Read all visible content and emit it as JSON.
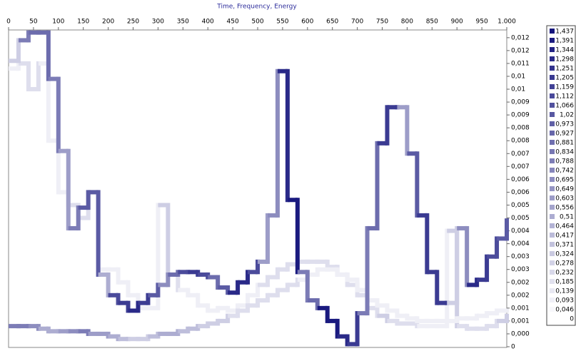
{
  "chart_data": {
    "type": "step-heat",
    "title": "Time, Frequency, Energy",
    "xlim": [
      0,
      1000
    ],
    "xticks": [
      0,
      50,
      100,
      150,
      200,
      250,
      300,
      350,
      400,
      450,
      500,
      550,
      600,
      650,
      700,
      750,
      800,
      850,
      900,
      950,
      {
        "value": 1000,
        "label": "1.000"
      }
    ],
    "ylim": [
      0,
      0.0123
    ],
    "yticks": [
      {
        "value": 0.012,
        "label": "0,012"
      },
      {
        "value": 0.0115,
        "label": "0,012"
      },
      {
        "value": 0.011,
        "label": "0,011"
      },
      {
        "value": 0.0105,
        "label": "0,01"
      },
      {
        "value": 0.01,
        "label": "0,01"
      },
      {
        "value": 0.0095,
        "label": "0,009"
      },
      {
        "value": 0.009,
        "label": "0,009"
      },
      {
        "value": 0.0085,
        "label": "0,008"
      },
      {
        "value": 0.008,
        "label": "0,008"
      },
      {
        "value": 0.0075,
        "label": "0,007"
      },
      {
        "value": 0.007,
        "label": "0,007"
      },
      {
        "value": 0.0065,
        "label": "0,006"
      },
      {
        "value": 0.006,
        "label": "0,006"
      },
      {
        "value": 0.0055,
        "label": "0,005"
      },
      {
        "value": 0.005,
        "label": "0,005"
      },
      {
        "value": 0.0045,
        "label": "0,004"
      },
      {
        "value": 0.004,
        "label": "0,004"
      },
      {
        "value": 0.0035,
        "label": "0,003"
      },
      {
        "value": 0.003,
        "label": "0,003"
      },
      {
        "value": 0.0025,
        "label": "0,002"
      },
      {
        "value": 0.002,
        "label": "0,002"
      },
      {
        "value": 0.0015,
        "label": "0,001"
      },
      {
        "value": 0.001,
        "label": "0,001"
      },
      {
        "value": 0.0005,
        "label": "0,000"
      },
      0
    ],
    "x": [
      0,
      20,
      40,
      60,
      80,
      100,
      120,
      140,
      160,
      180,
      200,
      220,
      240,
      260,
      280,
      300,
      320,
      340,
      360,
      380,
      400,
      420,
      440,
      460,
      480,
      500,
      520,
      540,
      560,
      580,
      600,
      620,
      640,
      660,
      680,
      700,
      720,
      740,
      760,
      780,
      800,
      820,
      840,
      860,
      880,
      900,
      920,
      940,
      960,
      980,
      1000
    ],
    "series": [
      {
        "values": [
          0.0111,
          0.0119,
          0.0122,
          0.0122,
          0.0104,
          0.0076,
          0.0046,
          0.0054,
          0.006,
          0.0028,
          0.002,
          0.0017,
          0.0014,
          0.0017,
          0.002,
          0.0024,
          0.0028,
          0.0029,
          0.0029,
          0.0028,
          0.0027,
          0.0023,
          0.0021,
          0.0025,
          0.0029,
          0.0033,
          0.0051,
          0.0107,
          0.0057,
          0.0029,
          0.0018,
          0.0015,
          0.001,
          0.0004,
          0.0001,
          0.0013,
          0.0046,
          0.0079,
          0.0093,
          0.0093,
          0.0075,
          0.0051,
          0.0029,
          0.0017,
          0.0017,
          0.0046,
          0.0024,
          0.0026,
          0.0035,
          0.0042,
          0.0049
        ],
        "energy": [
          0.3,
          0.8,
          0.9,
          0.9,
          0.8,
          0.6,
          0.8,
          1.0,
          1.0,
          0.5,
          1.1,
          1.2,
          1.3,
          1.2,
          1.0,
          0.7,
          0.9,
          1.1,
          1.2,
          1.1,
          0.9,
          1.0,
          1.3,
          1.3,
          1.1,
          0.6,
          0.7,
          1.3,
          1.4,
          0.8,
          0.9,
          1.4,
          1.4,
          1.3,
          1.2,
          0.8,
          0.9,
          1.2,
          1.2,
          0.6,
          1.0,
          1.2,
          1.2,
          1.2,
          0.3,
          0.7,
          1.3,
          1.2,
          1.1,
          1.0,
          0.9
        ]
      },
      {
        "values": [
          0.0108,
          0.011,
          0.01,
          0.011,
          0.008,
          0.006,
          0.0055,
          0.005,
          0.006,
          0.003,
          0.003,
          0.0025,
          0.002,
          0.0015,
          0.0015,
          0.0055,
          0.0028,
          0.0022,
          0.002,
          0.0016,
          0.0014,
          0.0015,
          0.0014,
          0.0016,
          0.002,
          0.0024,
          0.0027,
          0.003,
          0.0032,
          0.0033,
          0.0033,
          0.0033,
          0.0031,
          0.0028,
          0.0024,
          0.002,
          0.0015,
          0.0012,
          0.001,
          0.0009,
          0.0009,
          0.0008,
          0.0008,
          0.0008,
          0.0045,
          0.0008,
          0.0007,
          0.0007,
          0.0008,
          0.001,
          0.0012
        ],
        "energy": [
          0.1,
          0.2,
          0.2,
          0.1,
          0.1,
          0.1,
          0.2,
          0.2,
          0.1,
          0.1,
          0.1,
          0.1,
          0.1,
          0.1,
          0.1,
          0.3,
          0.2,
          0.1,
          0.1,
          0.1,
          0.1,
          0.1,
          0.1,
          0.1,
          0.1,
          0.2,
          0.2,
          0.2,
          0.2,
          0.2,
          0.2,
          0.2,
          0.2,
          0.2,
          0.2,
          0.2,
          0.2,
          0.3,
          0.2,
          0.2,
          0.2,
          0.1,
          0.1,
          0.1,
          0.3,
          0.2,
          0.2,
          0.2,
          0.2,
          0.3,
          0.3
        ]
      },
      {
        "values": [
          0.0008,
          0.0008,
          0.0008,
          0.0007,
          0.0006,
          0.0006,
          0.0006,
          0.0006,
          0.0005,
          0.0005,
          0.0004,
          0.0003,
          0.0003,
          0.0003,
          0.0004,
          0.0005,
          0.0005,
          0.0006,
          0.0007,
          0.0008,
          0.0009,
          0.001,
          0.0012,
          0.0014,
          0.0016,
          0.0018,
          0.002,
          0.0022,
          0.0024,
          0.0026,
          0.0028,
          0.003,
          0.003,
          0.0028,
          0.0026,
          0.0022,
          0.0018,
          0.0016,
          0.0014,
          0.0012,
          0.0011,
          0.001,
          0.001,
          0.001,
          0.001,
          0.0011,
          0.0011,
          0.0012,
          0.0013,
          0.0014,
          0.0014
        ],
        "energy": [
          0.8,
          0.8,
          0.7,
          0.5,
          0.5,
          0.6,
          0.7,
          0.8,
          0.6,
          0.6,
          0.5,
          0.4,
          0.3,
          0.3,
          0.4,
          0.5,
          0.5,
          0.4,
          0.4,
          0.3,
          0.3,
          0.3,
          0.2,
          0.2,
          0.2,
          0.2,
          0.2,
          0.2,
          0.2,
          0.1,
          0.1,
          0.1,
          0.1,
          0.1,
          0.1,
          0.1,
          0.1,
          0.1,
          0.1,
          0.1,
          0.1,
          0.1,
          0.1,
          0.1,
          0.1,
          0.1,
          0.1,
          0.1,
          0.1,
          0.1,
          0.1
        ]
      }
    ],
    "color_scale": [
      {
        "value": 1.437,
        "label": "1,437"
      },
      {
        "value": 1.391,
        "label": "1,391"
      },
      {
        "value": 1.344,
        "label": "1,344"
      },
      {
        "value": 1.298,
        "label": "1,298"
      },
      {
        "value": 1.251,
        "label": "1,251"
      },
      {
        "value": 1.205,
        "label": "1,205"
      },
      {
        "value": 1.159,
        "label": "1,159"
      },
      {
        "value": 1.112,
        "label": "1,112"
      },
      {
        "value": 1.066,
        "label": "1,066"
      },
      {
        "value": 1.02,
        "label": "1,02"
      },
      {
        "value": 0.973,
        "label": "0,973"
      },
      {
        "value": 0.927,
        "label": "0,927"
      },
      {
        "value": 0.881,
        "label": "0,881"
      },
      {
        "value": 0.834,
        "label": "0,834"
      },
      {
        "value": 0.788,
        "label": "0,788"
      },
      {
        "value": 0.742,
        "label": "0,742"
      },
      {
        "value": 0.695,
        "label": "0,695"
      },
      {
        "value": 0.649,
        "label": "0,649"
      },
      {
        "value": 0.603,
        "label": "0,603"
      },
      {
        "value": 0.556,
        "label": "0,556"
      },
      {
        "value": 0.51,
        "label": "0,51"
      },
      {
        "value": 0.464,
        "label": "0,464"
      },
      {
        "value": 0.417,
        "label": "0,417"
      },
      {
        "value": 0.371,
        "label": "0,371"
      },
      {
        "value": 0.324,
        "label": "0,324"
      },
      {
        "value": 0.278,
        "label": "0,278"
      },
      {
        "value": 0.232,
        "label": "0,232"
      },
      {
        "value": 0.185,
        "label": "0,185"
      },
      {
        "value": 0.139,
        "label": "0,139"
      },
      {
        "value": 0.093,
        "label": "0,093"
      },
      {
        "value": 0.046,
        "label": "0,046"
      },
      0
    ],
    "color_low": "#ffffff",
    "color_high": "#14147c"
  }
}
